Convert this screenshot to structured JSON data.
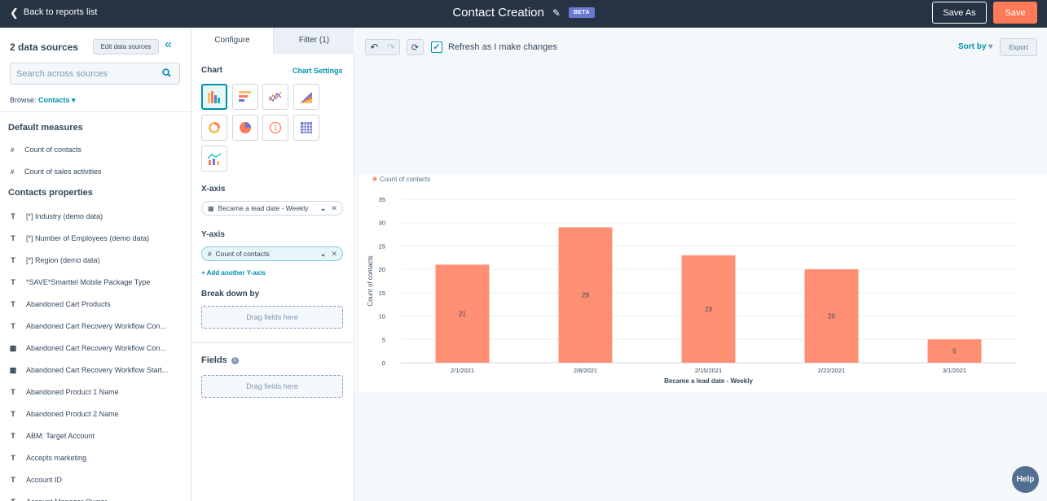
{
  "header": {
    "back_label": "Back to reports list",
    "title": "Contact Creation",
    "badge": "BETA",
    "save_as_label": "Save As",
    "save_label": "Save"
  },
  "sources": {
    "heading": "2 data sources",
    "edit_label": "Edit data sources",
    "search_placeholder": "Search across sources",
    "browse_label": "Browse:",
    "browse_value": "Contacts"
  },
  "default_measures": {
    "heading": "Default measures",
    "items": [
      {
        "icon": "#",
        "label": "Count of contacts"
      },
      {
        "icon": "#",
        "label": "Count of sales activities"
      }
    ]
  },
  "contact_properties": {
    "heading": "Contacts properties",
    "items": [
      {
        "icon": "T",
        "label": "[*] Industry (demo data)"
      },
      {
        "icon": "T",
        "label": "[*] Number of Employees (demo data)"
      },
      {
        "icon": "T",
        "label": "[*] Region (demo data)"
      },
      {
        "icon": "T",
        "label": "*SAVE*Smarttel Mobile Package Type"
      },
      {
        "icon": "T",
        "label": "Abandoned Cart Products"
      },
      {
        "icon": "T",
        "label": "Abandoned Cart Recovery Workflow Con..."
      },
      {
        "icon": "calendar",
        "label": "Abandoned Cart Recovery Workflow Con..."
      },
      {
        "icon": "calendar",
        "label": "Abandoned Cart Recovery Workflow Start..."
      },
      {
        "icon": "T",
        "label": "Abandoned Product 1 Name"
      },
      {
        "icon": "T",
        "label": "Abandoned Product 2 Name"
      },
      {
        "icon": "T",
        "label": "ABM: Target Account"
      },
      {
        "icon": "T",
        "label": "Accepts marketing"
      },
      {
        "icon": "T",
        "label": "Account ID"
      },
      {
        "icon": "T",
        "label": "Account Manager Owner"
      }
    ]
  },
  "config": {
    "tabs": [
      "Configure",
      "Filter (1)"
    ],
    "chart_label": "Chart",
    "chart_settings_label": "Chart Settings",
    "xaxis_label": "X-axis",
    "xaxis_value": "Became a lead date - Weekly",
    "yaxis_label": "Y-axis",
    "yaxis_value": "Count of contacts",
    "add_y_label": "+ Add another Y-axis",
    "breakdown_label": "Break down by",
    "drag_label": "Drag fields here",
    "fields_label": "Fields"
  },
  "toolbar": {
    "refresh_label": "Refresh as I make changes",
    "sort_label": "Sort by",
    "export_label": "Export"
  },
  "help_label": "Help",
  "colors": {
    "bar": "#ff8f73",
    "accent": "#0091ae",
    "topbar": "#253342",
    "save": "#ff7a59"
  },
  "chart_data": {
    "type": "bar",
    "categories": [
      "2/1/2021",
      "2/8/2021",
      "2/15/2021",
      "2/22/2021",
      "3/1/2021"
    ],
    "series": [
      {
        "name": "Count of contacts",
        "values": [
          21,
          29,
          23,
          20,
          5
        ]
      }
    ],
    "xlabel": "Became a lead date - Weekly",
    "ylabel": "Count of contacts",
    "ylim": [
      0,
      35
    ],
    "yticks": [
      0,
      5,
      10,
      15,
      20,
      25,
      30,
      35
    ],
    "grid": true,
    "legend_position": "top-left"
  }
}
